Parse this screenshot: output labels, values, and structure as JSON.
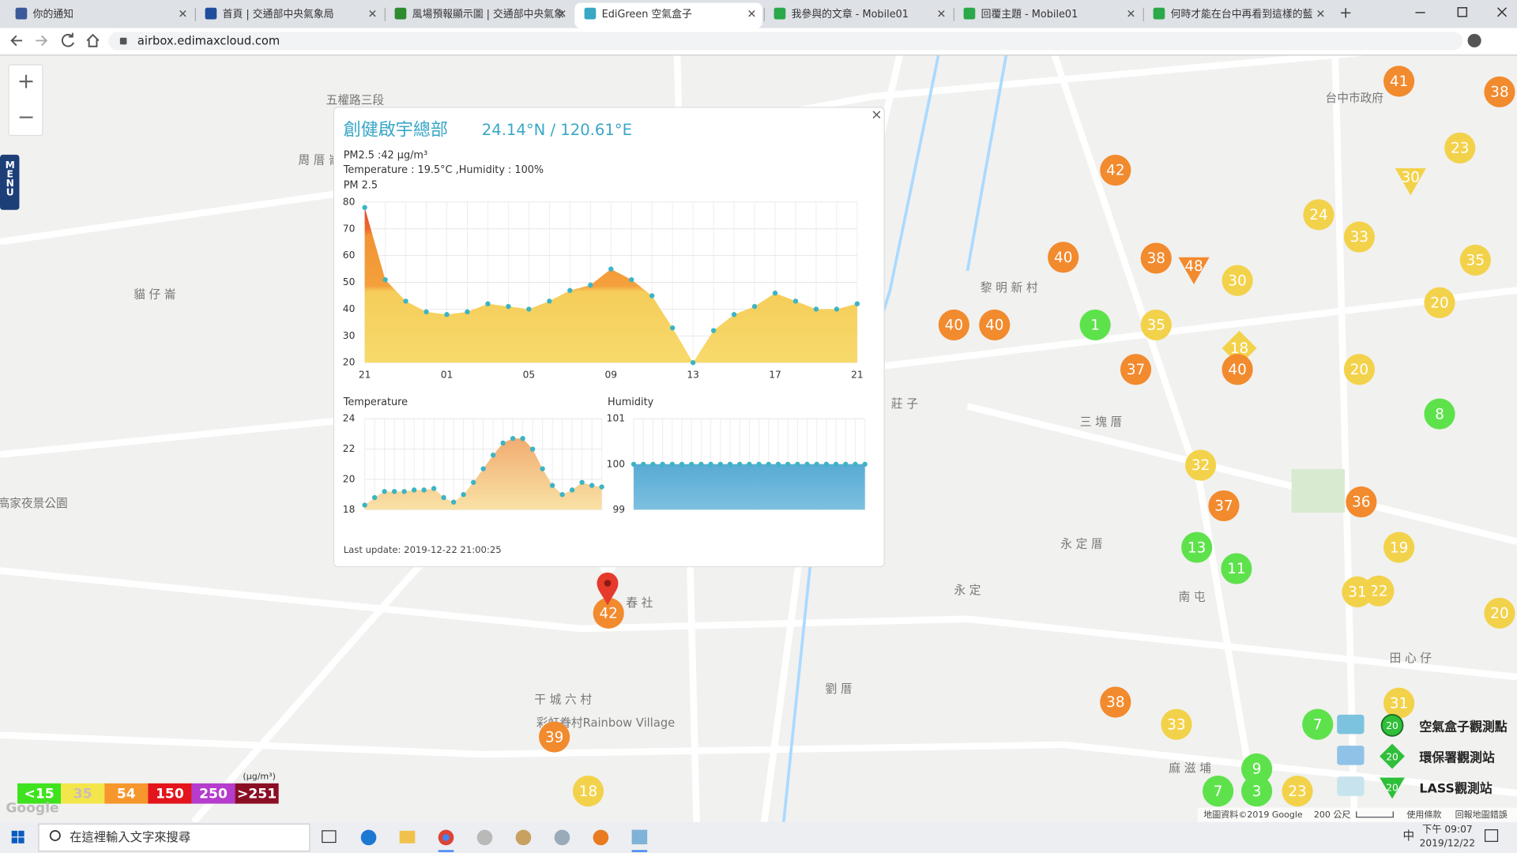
{
  "browser": {
    "tabs": [
      "你的通知",
      "首頁 | 交通部中央氣象局",
      "風場預報顯示圖 | 交通部中央氣象",
      "EdiGreen 空氣盒子",
      "我參與的文章 - Mobile01",
      "回覆主題 - Mobile01",
      "何時才能在台中再看到這樣的藍"
    ],
    "url": "airbox.edimaxcloud.com"
  },
  "map": {
    "zoom_in": "+",
    "zoom_out": "−",
    "menu": "MENU",
    "places": [
      "五權路三段",
      "周 厝 崙",
      "貓 仔 崙",
      "黎 明 新 村",
      "三 塊 厝",
      "永 定 厝",
      "永 定",
      "南 屯",
      "春 社",
      "劉 厝",
      "干 城 六 村",
      "彩虹眷村Rainbow Village",
      "田 心 仔",
      "麻 滋 埔",
      "高家夜景公園",
      "台中市政府",
      "莊 子"
    ],
    "markers": [
      {
        "value": 41,
        "color": "#f28a2e",
        "shape": "circle"
      },
      {
        "value": 38,
        "color": "#f28a2e",
        "shape": "circle"
      },
      {
        "value": 23,
        "color": "#f3d24b",
        "shape": "circle"
      },
      {
        "value": 42,
        "color": "#f28a2e",
        "shape": "circle"
      },
      {
        "value": 30,
        "color": "#f3d24b",
        "shape": "triangle"
      },
      {
        "value": 24,
        "color": "#f3d24b",
        "shape": "circle"
      },
      {
        "value": 33,
        "color": "#f3d24b",
        "shape": "circle"
      },
      {
        "value": 40,
        "color": "#f28a2e",
        "shape": "circle"
      },
      {
        "value": 38,
        "color": "#f28a2e",
        "shape": "circle"
      },
      {
        "value": 48,
        "color": "#f28a2e",
        "shape": "triangle"
      },
      {
        "value": 30,
        "color": "#f3d24b",
        "shape": "circle"
      },
      {
        "value": 35,
        "color": "#f3d24b",
        "shape": "circle"
      },
      {
        "value": 20,
        "color": "#f3d24b",
        "shape": "circle"
      },
      {
        "value": 40,
        "color": "#f28a2e",
        "shape": "circle"
      },
      {
        "value": 40,
        "color": "#f28a2e",
        "shape": "circle"
      },
      {
        "value": 1,
        "color": "#5ee24c",
        "shape": "circle"
      },
      {
        "value": 35,
        "color": "#f3d24b",
        "shape": "circle"
      },
      {
        "value": 18,
        "color": "#f3d24b",
        "shape": "diamond"
      },
      {
        "value": 37,
        "color": "#f28a2e",
        "shape": "circle"
      },
      {
        "value": 40,
        "color": "#f28a2e",
        "shape": "circle"
      },
      {
        "value": 20,
        "color": "#f3d24b",
        "shape": "circle"
      },
      {
        "value": 8,
        "color": "#5ee24c",
        "shape": "circle"
      },
      {
        "value": 32,
        "color": "#f3d24b",
        "shape": "circle"
      },
      {
        "value": 37,
        "color": "#f28a2e",
        "shape": "circle"
      },
      {
        "value": 36,
        "color": "#f28a2e",
        "shape": "circle"
      },
      {
        "value": 13,
        "color": "#5ee24c",
        "shape": "circle"
      },
      {
        "value": 11,
        "color": "#5ee24c",
        "shape": "circle"
      },
      {
        "value": 19,
        "color": "#f3d24b",
        "shape": "circle"
      },
      {
        "value": 22,
        "color": "#f3d24b",
        "shape": "circle"
      },
      {
        "value": 31,
        "color": "#f3d24b",
        "shape": "circle"
      },
      {
        "value": 20,
        "color": "#f3d24b",
        "shape": "circle"
      },
      {
        "value": 42,
        "color": "#f28a2e",
        "shape": "circle"
      },
      {
        "value": 38,
        "color": "#f28a2e",
        "shape": "circle"
      },
      {
        "value": 31,
        "color": "#f3d24b",
        "shape": "circle"
      },
      {
        "value": 33,
        "color": "#f3d24b",
        "shape": "circle"
      },
      {
        "value": 7,
        "color": "#5ee24c",
        "shape": "circle"
      },
      {
        "value": 39,
        "color": "#f28a2e",
        "shape": "circle"
      },
      {
        "value": 18,
        "color": "#f3d24b",
        "shape": "circle"
      },
      {
        "value": 9,
        "color": "#5ee24c",
        "shape": "circle"
      },
      {
        "value": 7,
        "color": "#5ee24c",
        "shape": "circle"
      },
      {
        "value": 3,
        "color": "#5ee24c",
        "shape": "circle"
      },
      {
        "value": 23,
        "color": "#f3d24b",
        "shape": "circle"
      }
    ],
    "legend": {
      "unit": "(μg/m³)",
      "items": [
        {
          "label": "<15",
          "color": "#3fe21f"
        },
        {
          "label": "35",
          "color": "#f3e64a"
        },
        {
          "label": "54",
          "color": "#f7962c"
        },
        {
          "label": "150",
          "color": "#e3141b"
        },
        {
          "label": "250",
          "color": "#b53ccc"
        },
        {
          "label": ">251",
          "color": "#8a0f24"
        }
      ]
    },
    "stations": [
      {
        "label": "空氣盒子觀測點",
        "icon_text": "20"
      },
      {
        "label": "環保署觀測站",
        "icon_text": "20"
      },
      {
        "label": "LASS觀測站",
        "icon_text": "20"
      }
    ],
    "footer": [
      "地圖資料©2019 Google",
      "200 公尺",
      "使用條款",
      "回報地圖錯誤"
    ],
    "google": "Google"
  },
  "popup": {
    "close": "×",
    "title": "創健啟宇總部",
    "coords": "24.14°N / 120.61°E",
    "pm_text": "PM2.5 :42 μg/m³",
    "temp_hum_text": "Temperature : 19.5°C ,Humidity : 100%",
    "pm_chart": {
      "title": "PM 2.5",
      "xtick_labels": [
        "21",
        "01",
        "05",
        "09",
        "13",
        "17",
        "21"
      ],
      "values": [
        78,
        51,
        43,
        39,
        38,
        39,
        42,
        41,
        40,
        43,
        47,
        49,
        55,
        51,
        45,
        33,
        20,
        32,
        38,
        41,
        46,
        43,
        40,
        40,
        42
      ],
      "ylim": [
        20,
        80
      ],
      "yticks": [
        20,
        30,
        40,
        50,
        60,
        70,
        80
      ]
    },
    "temp_chart": {
      "title": "Temperature",
      "values": [
        18.3,
        18.8,
        19.2,
        19.2,
        19.2,
        19.3,
        19.3,
        19.4,
        18.8,
        18.5,
        19.0,
        19.8,
        20.7,
        21.6,
        22.4,
        22.7,
        22.7,
        22.0,
        20.7,
        19.6,
        19.0,
        19.3,
        19.8,
        19.6,
        19.5
      ],
      "ylim": [
        18,
        24
      ],
      "yticks": [
        18,
        20,
        22,
        24
      ]
    },
    "hum_chart": {
      "title": "Humidity",
      "values": [
        100,
        100,
        100,
        100,
        100,
        100,
        100,
        100,
        100,
        100,
        100,
        100,
        100,
        100,
        100,
        100,
        100,
        100,
        100,
        100,
        100,
        100,
        100,
        100,
        100
      ],
      "ylim": [
        99,
        101
      ],
      "yticks": [
        99,
        100,
        101
      ]
    },
    "last_update": "Last update: 2019-12-22 21:00:25"
  },
  "taskbar": {
    "search": "在這裡輸入文字來搜尋",
    "ime": "中",
    "time": "下午 09:07",
    "date": "2019/12/22"
  }
}
